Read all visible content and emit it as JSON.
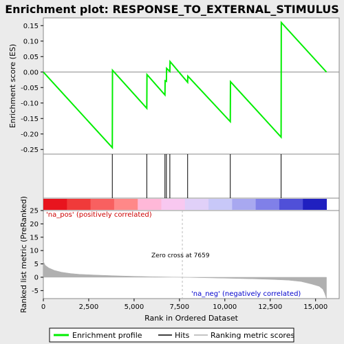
{
  "chart_data": {
    "type": "line",
    "title": "Enrichment plot: RESPONSE_TO_EXTERNAL_STIMULUS",
    "xlabel": "Rank in Ordered Dataset",
    "ylabel_top": "Enrichment score (ES)",
    "ylabel_bottom": "Ranked list metric (PreRanked)",
    "xlim": [
      0,
      16300
    ],
    "ylim_es": [
      -0.265,
      0.175
    ],
    "ylim_metric": [
      -8,
      25
    ],
    "x_ticks": [
      "0",
      "2,500",
      "5,000",
      "7,500",
      "10,000",
      "12,500",
      "15,000"
    ],
    "x_tick_values": [
      0,
      2500,
      5000,
      7500,
      10000,
      12500,
      15000
    ],
    "es_ticks": [
      "0.15",
      "0.10",
      "0.05",
      "0.00",
      "-0.05",
      "-0.10",
      "-0.15",
      "-0.20",
      "-0.25"
    ],
    "es_tick_values": [
      0.15,
      0.1,
      0.05,
      0.0,
      -0.05,
      -0.1,
      -0.15,
      -0.2,
      -0.25
    ],
    "metric_ticks": [
      "25",
      "20",
      "15",
      "10",
      "5",
      "0",
      "-5"
    ],
    "metric_tick_values": [
      25,
      20,
      15,
      10,
      5,
      0,
      -5
    ],
    "series": [
      {
        "name": "Enrichment profile",
        "x": [
          0,
          3800,
          3810,
          5700,
          5710,
          6700,
          6710,
          6780,
          6790,
          6970,
          6980,
          7950,
          7960,
          10300,
          10310,
          13100,
          13110,
          15600
        ],
        "y": [
          0.0,
          -0.244,
          0.006,
          -0.117,
          -0.008,
          -0.074,
          -0.028,
          -0.03,
          0.012,
          0.002,
          0.034,
          -0.033,
          -0.013,
          -0.16,
          -0.031,
          -0.21,
          0.16,
          0.0
        ]
      }
    ],
    "hits": [
      3800,
      5700,
      6700,
      6780,
      6970,
      7950,
      10300,
      13100
    ],
    "metric_curve": {
      "x": [
        0,
        100,
        300,
        600,
        1000,
        1500,
        2000,
        3000,
        4000,
        5000,
        6000,
        7000,
        7659,
        8500,
        10000,
        11500,
        12500,
        13500,
        14200,
        14800,
        15200,
        15400,
        15500,
        15600
      ],
      "y": [
        6,
        4.5,
        3.5,
        2.6,
        1.9,
        1.4,
        1.1,
        0.8,
        0.55,
        0.35,
        0.2,
        0.08,
        0,
        -0.15,
        -0.35,
        -0.6,
        -0.8,
        -1.1,
        -1.6,
        -2.6,
        -3.4,
        -4.5,
        -6,
        -8
      ]
    },
    "color_bands": [
      "#e8141e",
      "#f03a3a",
      "#f86060",
      "#ff8888",
      "#ffb8d8",
      "#f8c8f0",
      "#e0d0f8",
      "#c8c8f8",
      "#a8a8f0",
      "#8080e8",
      "#5050d8",
      "#2020c0"
    ],
    "zero_cross_label": "Zero cross at 7659",
    "zero_cross": 7659,
    "pos_label": "'na_pos' (positively correlated)",
    "neg_label": "'na_neg' (negatively correlated)",
    "legend": [
      "Enrichment profile",
      "Hits",
      "Ranking metric scores"
    ],
    "colors": {
      "es_line": "#00ee00",
      "hits": "#000000",
      "metric": "#b0b0b0",
      "zero_line": "#bbbbbb"
    }
  }
}
